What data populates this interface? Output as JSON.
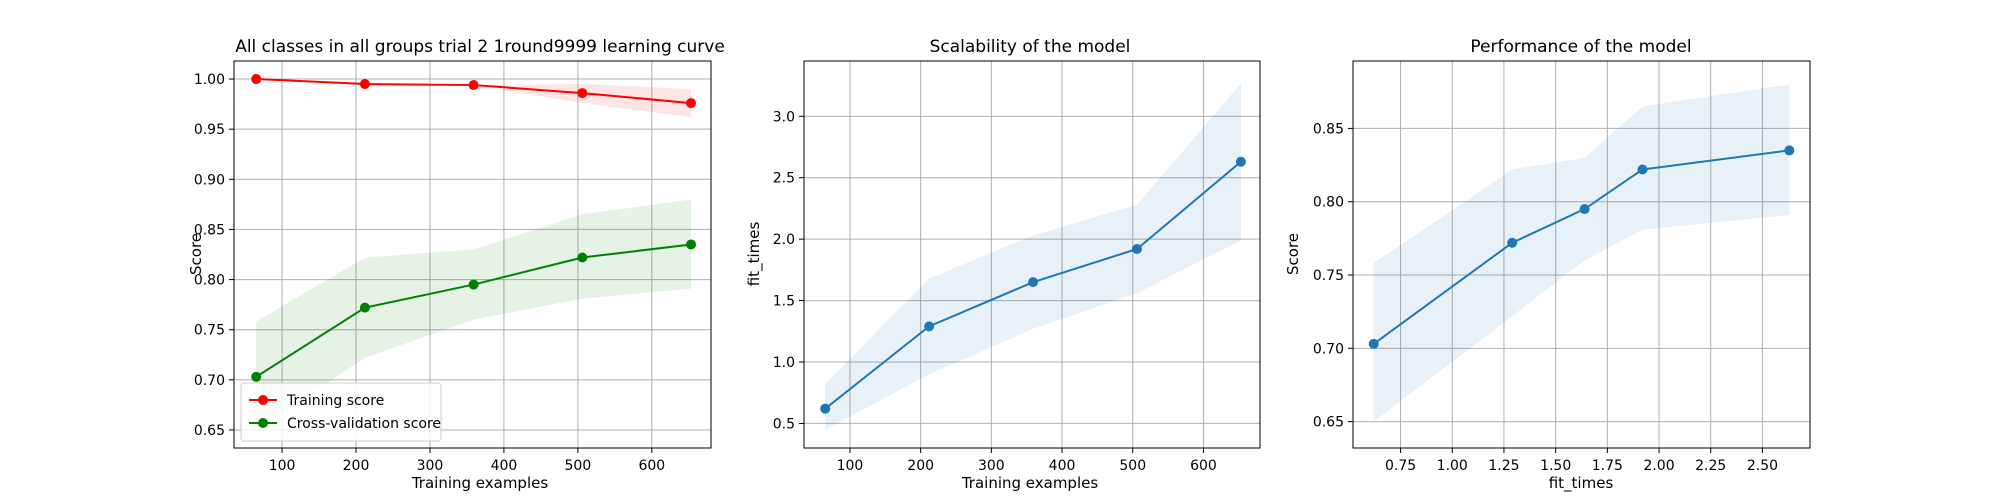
{
  "chart_data": [
    {
      "type": "line",
      "title": "All classes in all groups trial 2 1round9999 learning curve",
      "xlabel": "Training examples",
      "ylabel": "Score",
      "xlim": [
        35,
        680
      ],
      "ylim": [
        0.632,
        1.018
      ],
      "xticks": [
        100,
        200,
        300,
        400,
        500,
        600
      ],
      "yticks": [
        0.65,
        0.7,
        0.75,
        0.8,
        0.85,
        0.9,
        0.95,
        1.0
      ],
      "grid": true,
      "legend": "lower-left",
      "series": [
        {
          "name": "Training score",
          "color": "#ff0000",
          "x": [
            65,
            212,
            359,
            506,
            653
          ],
          "y": [
            1.0,
            0.995,
            0.994,
            0.986,
            0.976
          ],
          "band_low": [
            1.0,
            0.995,
            0.994,
            0.976,
            0.962
          ],
          "band_high": [
            1.0,
            0.995,
            0.994,
            0.995,
            0.99
          ]
        },
        {
          "name": "Cross-validation score",
          "color": "#008000",
          "x": [
            65,
            212,
            359,
            506,
            653
          ],
          "y": [
            0.703,
            0.772,
            0.795,
            0.822,
            0.835
          ],
          "band_low": [
            0.65,
            0.722,
            0.76,
            0.781,
            0.791
          ],
          "band_high": [
            0.758,
            0.822,
            0.83,
            0.865,
            0.88
          ]
        }
      ]
    },
    {
      "type": "line",
      "title": "Scalability of the model",
      "xlabel": "Training examples",
      "ylabel": "fit_times",
      "xlim": [
        35,
        680
      ],
      "ylim": [
        0.3,
        3.45
      ],
      "xticks": [
        100,
        200,
        300,
        400,
        500,
        600
      ],
      "yticks": [
        0.5,
        1.0,
        1.5,
        2.0,
        2.5,
        3.0
      ],
      "grid": true,
      "series": [
        {
          "color": "#1f77b4",
          "x": [
            65,
            212,
            359,
            506,
            653
          ],
          "y": [
            0.62,
            1.29,
            1.65,
            1.92,
            2.63
          ],
          "band_low": [
            0.45,
            0.9,
            1.27,
            1.56,
            1.99
          ],
          "band_high": [
            0.82,
            1.68,
            2.03,
            2.28,
            3.27
          ]
        }
      ]
    },
    {
      "type": "line",
      "title": "Performance of the model",
      "xlabel": "fit_times",
      "ylabel": "Score",
      "xlim": [
        0.52,
        2.73
      ],
      "ylim": [
        0.632,
        0.896
      ],
      "xticks": [
        0.75,
        1.0,
        1.25,
        1.5,
        1.75,
        2.0,
        2.25,
        2.5
      ],
      "yticks": [
        0.65,
        0.7,
        0.75,
        0.8,
        0.85
      ],
      "grid": true,
      "series": [
        {
          "color": "#1f77b4",
          "x": [
            0.62,
            1.29,
            1.64,
            1.92,
            2.63
          ],
          "y": [
            0.703,
            0.772,
            0.795,
            0.822,
            0.835
          ],
          "band_low": [
            0.65,
            0.722,
            0.76,
            0.781,
            0.791
          ],
          "band_high": [
            0.758,
            0.822,
            0.83,
            0.865,
            0.88
          ]
        }
      ]
    }
  ]
}
